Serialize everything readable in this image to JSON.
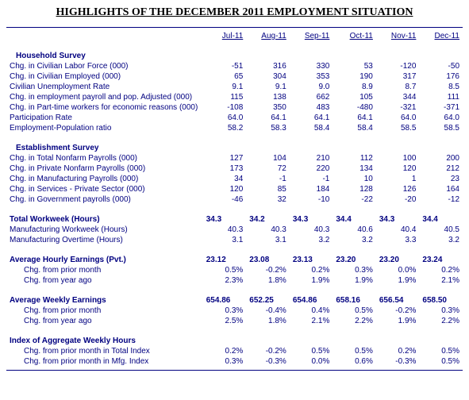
{
  "title": "HIGHLIGHTS OF THE DECEMBER 2011 EMPLOYMENT SITUATION",
  "months": [
    "Jul-11",
    "Aug-11",
    "Sep-11",
    "Oct-11",
    "Nov-11",
    "Dec-11"
  ],
  "colors": {
    "text": "#000080",
    "border": "#000080",
    "background": "#ffffff"
  },
  "sections": [
    {
      "header": "Household Survey",
      "indent": 1,
      "rows": [
        {
          "label": "Chg. in Civilian Labor Force (000)",
          "values": [
            "-51",
            "316",
            "330",
            "53",
            "-120",
            "-50"
          ]
        },
        {
          "label": "Chg. in Civilian Employed (000)",
          "values": [
            "65",
            "304",
            "353",
            "190",
            "317",
            "176"
          ]
        },
        {
          "label": "Civilian Unemployment Rate",
          "values": [
            "9.1",
            "9.1",
            "9.0",
            "8.9",
            "8.7",
            "8.5"
          ]
        },
        {
          "label": "Chg. in employment payroll and pop. Adjusted (000)",
          "values": [
            "115",
            "138",
            "662",
            "105",
            "344",
            "111"
          ]
        },
        {
          "label": "Chg. in Part-time workers for economic reasons (000)",
          "values": [
            "-108",
            "350",
            "483",
            "-480",
            "-321",
            "-371"
          ]
        },
        {
          "label": "Participation Rate",
          "values": [
            "64.0",
            "64.1",
            "64.1",
            "64.1",
            "64.0",
            "64.0"
          ]
        },
        {
          "label": "Employment-Population ratio",
          "values": [
            "58.2",
            "58.3",
            "58.4",
            "58.4",
            "58.5",
            "58.5"
          ]
        }
      ]
    },
    {
      "header": "Establishment Survey",
      "indent": 1,
      "rows": [
        {
          "label": "Chg. in Total Nonfarm Payrolls (000)",
          "values": [
            "127",
            "104",
            "210",
            "112",
            "100",
            "200"
          ]
        },
        {
          "label": "Chg. in Private Nonfarm Payrolls (000)",
          "values": [
            "173",
            "72",
            "220",
            "134",
            "120",
            "212"
          ]
        },
        {
          "label": "Chg. in Manufacturing Payrolls (000)",
          "values": [
            "34",
            "-1",
            "-1",
            "10",
            "1",
            "23"
          ]
        },
        {
          "label": "Chg. in Services - Private Sector (000)",
          "values": [
            "120",
            "85",
            "184",
            "128",
            "126",
            "164"
          ]
        },
        {
          "label": "Chg. in Government payrolls (000)",
          "values": [
            "-46",
            "32",
            "-10",
            "-22",
            "-20",
            "-12"
          ]
        }
      ]
    },
    {
      "header": "Total Workweek (Hours)",
      "indent": 0,
      "header_values": [
        "34.3",
        "34.2",
        "34.3",
        "34.4",
        "34.3",
        "34.4"
      ],
      "rows": [
        {
          "label": "Manufacturing Workweek (Hours)",
          "values": [
            "40.3",
            "40.3",
            "40.3",
            "40.6",
            "40.4",
            "40.5"
          ]
        },
        {
          "label": "Manufacturing Overtime (Hours)",
          "values": [
            "3.1",
            "3.1",
            "3.2",
            "3.2",
            "3.3",
            "3.2"
          ]
        }
      ]
    },
    {
      "header": "Average Hourly Earnings (Pvt.)",
      "indent": 0,
      "header_values": [
        "23.12",
        "23.08",
        "23.13",
        "23.20",
        "23.20",
        "23.24"
      ],
      "rows": [
        {
          "label": "Chg. from prior month",
          "indent": 2,
          "values": [
            "0.5%",
            "-0.2%",
            "0.2%",
            "0.3%",
            "0.0%",
            "0.2%"
          ]
        },
        {
          "label": "Chg. from year ago",
          "indent": 2,
          "values": [
            "2.3%",
            "1.8%",
            "1.9%",
            "1.9%",
            "1.9%",
            "2.1%"
          ]
        }
      ]
    },
    {
      "header": "Average Weekly Earnings",
      "indent": 0,
      "header_values": [
        "654.86",
        "652.25",
        "654.86",
        "658.16",
        "656.54",
        "658.50"
      ],
      "rows": [
        {
          "label": "Chg. from prior month",
          "indent": 2,
          "values": [
            "0.3%",
            "-0.4%",
            "0.4%",
            "0.5%",
            "-0.2%",
            "0.3%"
          ]
        },
        {
          "label": "Chg. from year ago",
          "indent": 2,
          "values": [
            "2.5%",
            "1.8%",
            "2.1%",
            "2.2%",
            "1.9%",
            "2.2%"
          ]
        }
      ]
    },
    {
      "header": "Index of Aggregate Weekly Hours",
      "indent": 0,
      "rows": [
        {
          "label": "Chg. from prior month in Total Index",
          "indent": 2,
          "values": [
            "0.2%",
            "-0.2%",
            "0.5%",
            "0.5%",
            "0.2%",
            "0.5%"
          ]
        },
        {
          "label": "Chg. from prior month in Mfg. Index",
          "indent": 2,
          "values": [
            "0.3%",
            "-0.3%",
            "0.0%",
            "0.6%",
            "-0.3%",
            "0.5%"
          ]
        }
      ]
    }
  ]
}
